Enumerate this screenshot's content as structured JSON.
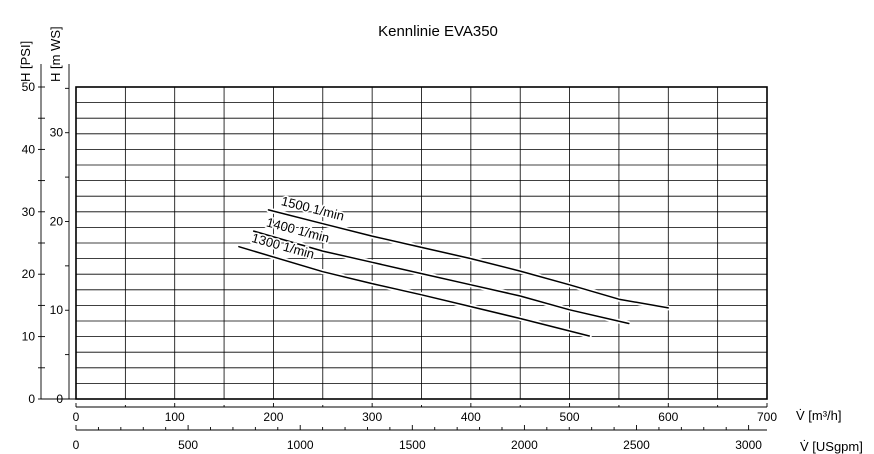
{
  "chart_data": {
    "type": "line",
    "title": "Kennlinie EVA350",
    "y_axis_psi": {
      "label": "H [PSI]",
      "range": [
        0,
        50
      ],
      "ticks": [
        0,
        10,
        20,
        30,
        40,
        50
      ]
    },
    "y_axis_mws": {
      "label": "H [m WS]",
      "range": [
        0,
        35.15
      ],
      "ticks": [
        0,
        10,
        20,
        30
      ]
    },
    "x_axis_m3h": {
      "label": "V̇ [m³/h]",
      "range": [
        0,
        700
      ],
      "ticks": [
        0,
        100,
        200,
        300,
        400,
        500,
        600,
        700
      ]
    },
    "x_axis_usgpm": {
      "label": "V̇ [USgpm]",
      "range": [
        0,
        3082
      ],
      "ticks": [
        0,
        500,
        1000,
        1500,
        2000,
        2500,
        3000
      ]
    },
    "grid": true,
    "series": [
      {
        "name": "1500 1/min",
        "x": [
          195,
          250,
          300,
          350,
          400,
          450,
          500,
          550,
          600
        ],
        "y": [
          30.3,
          28.1,
          26.1,
          24.3,
          22.5,
          20.5,
          18.3,
          16.0,
          14.6
        ]
      },
      {
        "name": "1400 1/min",
        "x": [
          180,
          250,
          300,
          350,
          400,
          450,
          500,
          560
        ],
        "y": [
          26.9,
          23.7,
          21.9,
          20.1,
          18.3,
          16.5,
          14.3,
          12.1
        ]
      },
      {
        "name": "1300 1/min",
        "x": [
          165,
          250,
          300,
          350,
          400,
          450,
          500,
          520
        ],
        "y": [
          24.4,
          20.4,
          18.5,
          16.7,
          14.8,
          12.9,
          10.9,
          10.1
        ]
      }
    ]
  }
}
